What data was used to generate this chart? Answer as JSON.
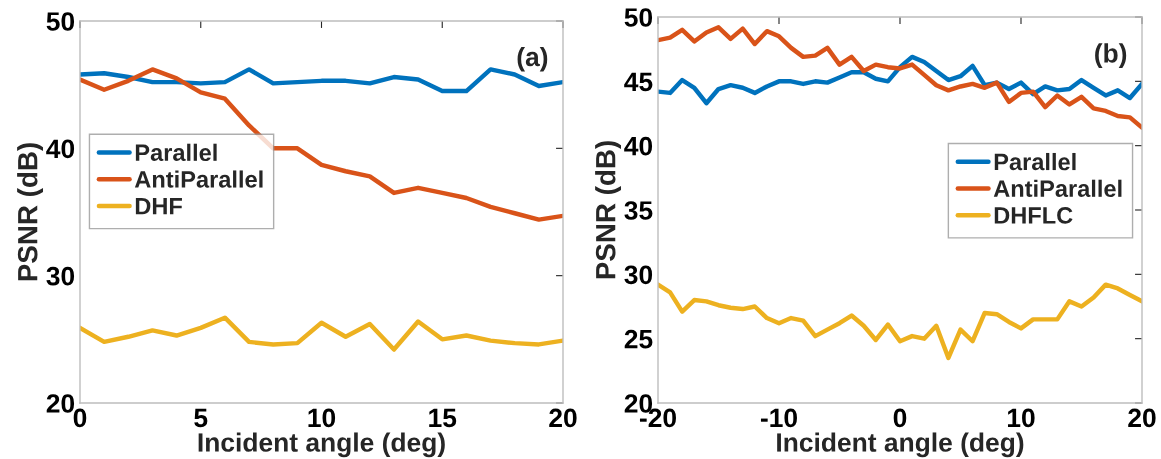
{
  "chart_data": [
    {
      "type": "line",
      "xlabel": "Incident angle (deg)",
      "ylabel": "PSNR (dB)",
      "annotations": [
        "(a)"
      ],
      "x": [
        0,
        1,
        2,
        3,
        4,
        5,
        6,
        7,
        8,
        9,
        10,
        11,
        12,
        13,
        14,
        15,
        16,
        17,
        18,
        19,
        20
      ],
      "xlim": [
        0,
        20
      ],
      "xticks": [
        0,
        5,
        10,
        15,
        20
      ],
      "ylim": [
        20,
        50
      ],
      "yticks": [
        20,
        30,
        40,
        50
      ],
      "grid": false,
      "legend": "left",
      "series": [
        {
          "name": "Parallel",
          "color": "#0072bd",
          "values": [
            45.8,
            45.9,
            45.6,
            45.2,
            45.2,
            45.1,
            45.2,
            46.2,
            45.1,
            45.2,
            45.3,
            45.3,
            45.1,
            45.6,
            45.4,
            44.5,
            44.5,
            46.2,
            45.8,
            44.9,
            45.2
          ]
        },
        {
          "name": "AntiParallel",
          "color": "#d95319",
          "values": [
            45.4,
            44.6,
            45.3,
            46.2,
            45.5,
            44.4,
            43.9,
            41.8,
            40.0,
            40.0,
            38.7,
            38.2,
            37.8,
            36.5,
            36.9,
            36.5,
            36.1,
            35.4,
            34.9,
            34.4,
            34.7
          ]
        },
        {
          "name": "DHF",
          "color": "#edb120",
          "values": [
            25.9,
            24.8,
            25.2,
            25.7,
            25.3,
            25.9,
            26.7,
            24.8,
            24.6,
            24.7,
            26.3,
            25.2,
            26.2,
            24.2,
            26.4,
            25.0,
            25.3,
            24.9,
            24.7,
            24.6,
            24.9
          ]
        }
      ]
    },
    {
      "type": "line",
      "xlabel": "Incident angle (deg)",
      "ylabel": "PSNR (dB)",
      "annotations": [
        "(b)"
      ],
      "x": [
        -20,
        -19,
        -18,
        -17,
        -16,
        -15,
        -14,
        -13,
        -12,
        -11,
        -10,
        -9,
        -8,
        -7,
        -6,
        -5,
        -4,
        -3,
        -2,
        -1,
        0,
        1,
        2,
        3,
        4,
        5,
        6,
        7,
        8,
        9,
        10,
        11,
        12,
        13,
        14,
        15,
        16,
        17,
        18,
        19,
        20
      ],
      "xlim": [
        -20,
        20
      ],
      "xticks": [
        -20,
        -10,
        0,
        10,
        20
      ],
      "ylim": [
        20,
        50
      ],
      "yticks": [
        20,
        25,
        30,
        35,
        40,
        45,
        50
      ],
      "grid": false,
      "legend": "right",
      "series": [
        {
          "name": "Parallel",
          "color": "#0072bd",
          "values": [
            44.2,
            44.1,
            45.1,
            44.5,
            43.3,
            44.4,
            44.7,
            44.5,
            44.1,
            44.6,
            45.0,
            45.0,
            44.8,
            45.0,
            44.9,
            45.3,
            45.7,
            45.7,
            45.2,
            45.0,
            46.1,
            46.9,
            46.5,
            45.8,
            45.1,
            45.4,
            46.2,
            44.7,
            44.9,
            44.4,
            44.9,
            44.0,
            44.6,
            44.3,
            44.4,
            45.1,
            44.5,
            43.9,
            44.3,
            43.7,
            44.8
          ]
        },
        {
          "name": "AntiParallel",
          "color": "#d95319",
          "values": [
            48.2,
            48.4,
            49.0,
            48.1,
            48.8,
            49.2,
            48.3,
            49.1,
            47.9,
            48.9,
            48.5,
            47.6,
            46.9,
            47.0,
            47.6,
            46.3,
            46.9,
            45.8,
            46.3,
            46.1,
            46.0,
            46.3,
            45.5,
            44.7,
            44.3,
            44.6,
            44.8,
            44.5,
            44.9,
            43.4,
            44.1,
            44.2,
            43.0,
            43.9,
            43.2,
            43.8,
            42.9,
            42.7,
            42.3,
            42.2,
            41.4
          ]
        },
        {
          "name": "DHFLC",
          "color": "#edb120",
          "values": [
            29.2,
            28.6,
            27.1,
            28.0,
            27.9,
            27.6,
            27.4,
            27.3,
            27.5,
            26.6,
            26.2,
            26.6,
            26.4,
            25.2,
            25.7,
            26.2,
            26.8,
            26.0,
            24.9,
            26.1,
            24.8,
            25.2,
            25.0,
            26.0,
            23.5,
            25.7,
            24.8,
            27.0,
            26.9,
            26.3,
            25.8,
            26.5,
            26.5,
            26.5,
            27.9,
            27.5,
            28.2,
            29.2,
            28.9,
            28.4,
            27.9
          ]
        }
      ]
    }
  ]
}
